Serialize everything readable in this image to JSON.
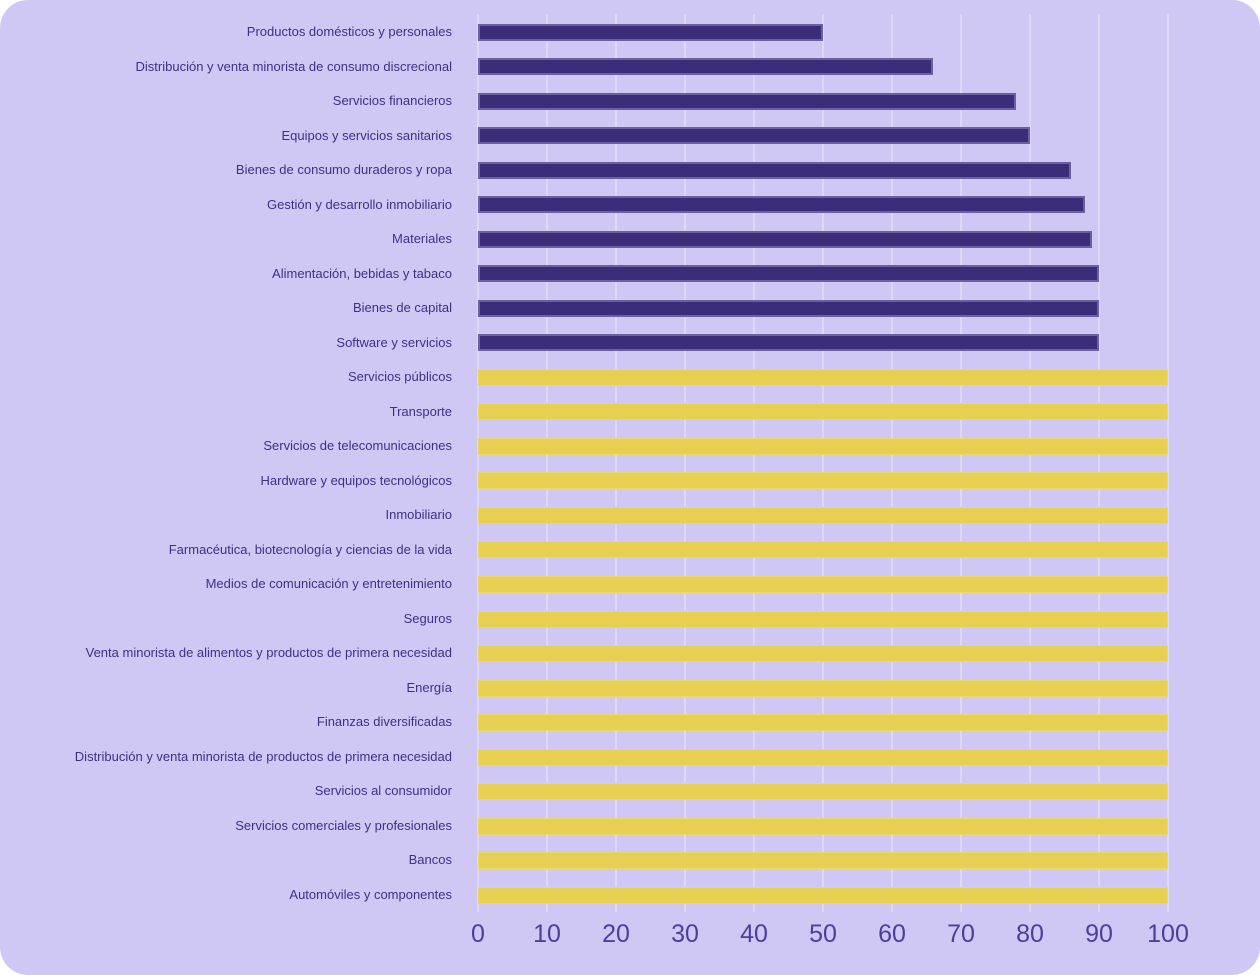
{
  "colors": {
    "page_background": "#ffffff",
    "card_background": "#cfc8f5",
    "bar_dark": "#3c2d7b",
    "bar_light": "#e6cf51",
    "gridline": "#ded8f7",
    "label_text": "#3e3086",
    "tick_text": "#4e3d9b"
  },
  "chart_data": {
    "type": "bar",
    "orientation": "horizontal",
    "xlim": [
      0,
      100
    ],
    "xticks": [
      0,
      10,
      20,
      30,
      40,
      50,
      60,
      70,
      80,
      90,
      100
    ],
    "grid": "vertical",
    "legend": "none",
    "bars": [
      {
        "label": "Productos domésticos y personales",
        "value": 50,
        "color": "dark"
      },
      {
        "label": "Distribución y venta minorista de consumo discrecional",
        "value": 66,
        "color": "dark"
      },
      {
        "label": "Servicios financieros",
        "value": 78,
        "color": "dark"
      },
      {
        "label": "Equipos y servicios sanitarios",
        "value": 80,
        "color": "dark"
      },
      {
        "label": "Bienes de consumo duraderos y ropa",
        "value": 86,
        "color": "dark"
      },
      {
        "label": "Gestión y desarrollo inmobiliario",
        "value": 88,
        "color": "dark"
      },
      {
        "label": "Materiales",
        "value": 89,
        "color": "dark"
      },
      {
        "label": "Alimentación, bebidas y tabaco",
        "value": 90,
        "color": "dark"
      },
      {
        "label": "Bienes de capital",
        "value": 90,
        "color": "dark"
      },
      {
        "label": "Software y servicios",
        "value": 90,
        "color": "dark"
      },
      {
        "label": "Servicios públicos",
        "value": 100,
        "color": "light"
      },
      {
        "label": "Transporte",
        "value": 100,
        "color": "light"
      },
      {
        "label": "Servicios de telecomunicaciones",
        "value": 100,
        "color": "light"
      },
      {
        "label": "Hardware y equipos tecnológicos",
        "value": 100,
        "color": "light"
      },
      {
        "label": "Inmobiliario",
        "value": 100,
        "color": "light"
      },
      {
        "label": "Farmacéutica, biotecnología y ciencias de la vida",
        "value": 100,
        "color": "light"
      },
      {
        "label": "Medios de comunicación y entretenimiento",
        "value": 100,
        "color": "light"
      },
      {
        "label": "Seguros",
        "value": 100,
        "color": "light"
      },
      {
        "label": "Venta minorista de alimentos y productos de primera necesidad",
        "value": 100,
        "color": "light"
      },
      {
        "label": "Energía",
        "value": 100,
        "color": "light"
      },
      {
        "label": "Finanzas diversificadas",
        "value": 100,
        "color": "light"
      },
      {
        "label": "Distribución y venta minorista de productos de primera necesidad",
        "value": 100,
        "color": "light"
      },
      {
        "label": "Servicios al consumidor",
        "value": 100,
        "color": "light"
      },
      {
        "label": "Servicios comerciales y profesionales",
        "value": 100,
        "color": "light"
      },
      {
        "label": "Bancos",
        "value": 100,
        "color": "light"
      },
      {
        "label": "Automóviles y componentes",
        "value": 100,
        "color": "light"
      }
    ]
  }
}
